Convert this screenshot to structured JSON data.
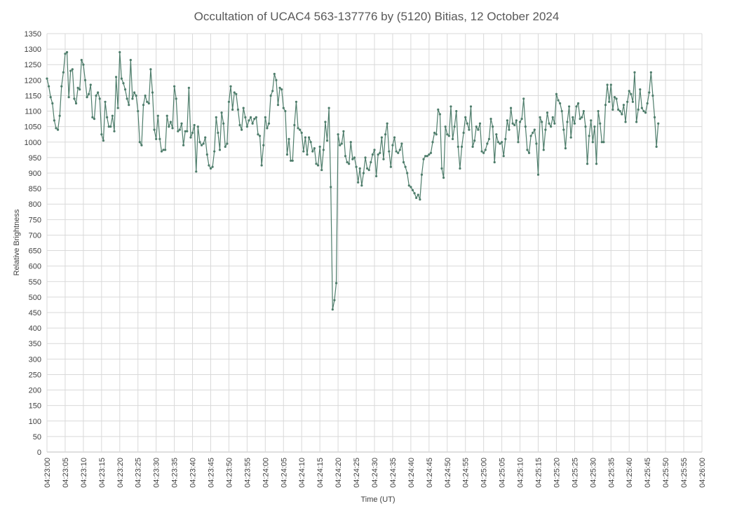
{
  "chart_data": {
    "type": "line",
    "title": "Occultation of UCAC4 563-137776  by (5120) Bitias, 12 October 2024",
    "xlabel": "Time (UT)",
    "ylabel": "Relative Brightness",
    "ylim": [
      0,
      1350
    ],
    "y_ticks": [
      0,
      50,
      100,
      150,
      200,
      250,
      300,
      350,
      400,
      450,
      500,
      550,
      600,
      650,
      700,
      750,
      800,
      850,
      900,
      950,
      1000,
      1050,
      1100,
      1150,
      1200,
      1250,
      1300,
      1350
    ],
    "x_range_seconds_after_04_23_00": [
      0,
      180
    ],
    "x_tick_labels": [
      "04:23:00",
      "04:23:05",
      "04:23:10",
      "04:23:15",
      "04:23:20",
      "04:23:25",
      "04:23:30",
      "04:23:35",
      "04:23:40",
      "04:23:45",
      "04:23:50",
      "04:23:55",
      "04:24:00",
      "04:24:05",
      "04:24:10",
      "04:24:15",
      "04:24:20",
      "04:24:25",
      "04:24:30",
      "04:24:35",
      "04:24:40",
      "04:24:45",
      "04:24:50",
      "04:24:55",
      "04:25:00",
      "04:25:05",
      "04:25:10",
      "04:25:15",
      "04:25:20",
      "04:25:25",
      "04:25:30",
      "04:25:35",
      "04:25:40",
      "04:25:45",
      "04:25:50",
      "04:25:55",
      "04:26:00"
    ],
    "grid": true,
    "legend": "none",
    "series_color": "#4e7d6b",
    "series": [
      {
        "sample_interval_s": 0.5,
        "start_s": 0,
        "values": [
          1205,
          1180,
          1145,
          1125,
          1070,
          1045,
          1040,
          1085,
          1180,
          1225,
          1285,
          1290,
          1145,
          1230,
          1235,
          1140,
          1125,
          1175,
          1170,
          1265,
          1250,
          1200,
          1145,
          1155,
          1185,
          1080,
          1075,
          1150,
          1160,
          1140,
          1025,
          1005,
          1130,
          1080,
          1050,
          1050,
          1085,
          1035,
          1210,
          1110,
          1290,
          1205,
          1190,
          1170,
          1140,
          1120,
          1265,
          1140,
          1160,
          1150,
          1100,
          1000,
          990,
          1120,
          1150,
          1130,
          1125,
          1235,
          1160,
          1040,
          1010,
          1085,
          1010,
          970,
          975,
          975,
          1085,
          1050,
          1065,
          1045,
          1180,
          1140,
          1035,
          1040,
          1060,
          990,
          1035,
          1035,
          1175,
          1015,
          1030,
          1055,
          905,
          1050,
          1000,
          990,
          995,
          1015,
          960,
          925,
          915,
          920,
          970,
          1080,
          1030,
          975,
          1095,
          1060,
          985,
          995,
          1130,
          1180,
          1105,
          1160,
          1155,
          1105,
          1055,
          1040,
          1110,
          1080,
          1050,
          1070,
          1080,
          1060,
          1075,
          1080,
          1025,
          1020,
          925,
          990,
          1080,
          1045,
          1060,
          1150,
          1165,
          1220,
          1200,
          1120,
          1175,
          1170,
          1110,
          1100,
          960,
          1010,
          940,
          940,
          1055,
          1130,
          1045,
          1040,
          1030,
          970,
          1015,
          960,
          1015,
          1000,
          970,
          980,
          930,
          925,
          985,
          910,
          975,
          1065,
          1005,
          1110,
          855,
          460,
          490,
          545,
          1025,
          990,
          995,
          1035,
          955,
          935,
          930,
          1000,
          945,
          950,
          920,
          870,
          915,
          860,
          900,
          950,
          915,
          910,
          935,
          960,
          975,
          890,
          960,
          965,
          1015,
          945,
          1025,
          1060,
          970,
          920,
          990,
          1015,
          970,
          965,
          975,
          995,
          935,
          920,
          900,
          860,
          855,
          845,
          835,
          820,
          830,
          815,
          895,
          945,
          955,
          955,
          960,
          965,
          1000,
          1030,
          1025,
          1105,
          1090,
          915,
          885,
          1050,
          1025,
          1020,
          1115,
          1010,
          1050,
          1100,
          985,
          915,
          985,
          1030,
          1080,
          1060,
          1040,
          1115,
          985,
          1005,
          1050,
          1040,
          1060,
          970,
          965,
          975,
          995,
          1010,
          1075,
          1050,
          935,
          1025,
          1000,
          995,
          1000,
          955,
          1010,
          1070,
          1040,
          1110,
          1060,
          1055,
          1070,
          1000,
          1065,
          1075,
          1140,
          1050,
          975,
          965,
          1020,
          1030,
          1040,
          995,
          895,
          1080,
          1065,
          975,
          1040,
          1095,
          1060,
          1050,
          1080,
          1060,
          1155,
          1135,
          1125,
          1100,
          1040,
          980,
          1065,
          1115,
          1015,
          1080,
          1060,
          1115,
          1125,
          1075,
          1080,
          1100,
          1050,
          930,
          1020,
          1070,
          1000,
          1050,
          930,
          1100,
          1060,
          1000,
          1000,
          1120,
          1185,
          1130,
          1185,
          1105,
          1145,
          1140,
          1105,
          1100,
          1090,
          1120,
          1065,
          1130,
          1165,
          1155,
          1130,
          1225,
          1065,
          1105,
          1170,
          1110,
          1100,
          1095,
          1125,
          1160,
          1225,
          1150,
          1080,
          985,
          1060
        ]
      }
    ]
  }
}
